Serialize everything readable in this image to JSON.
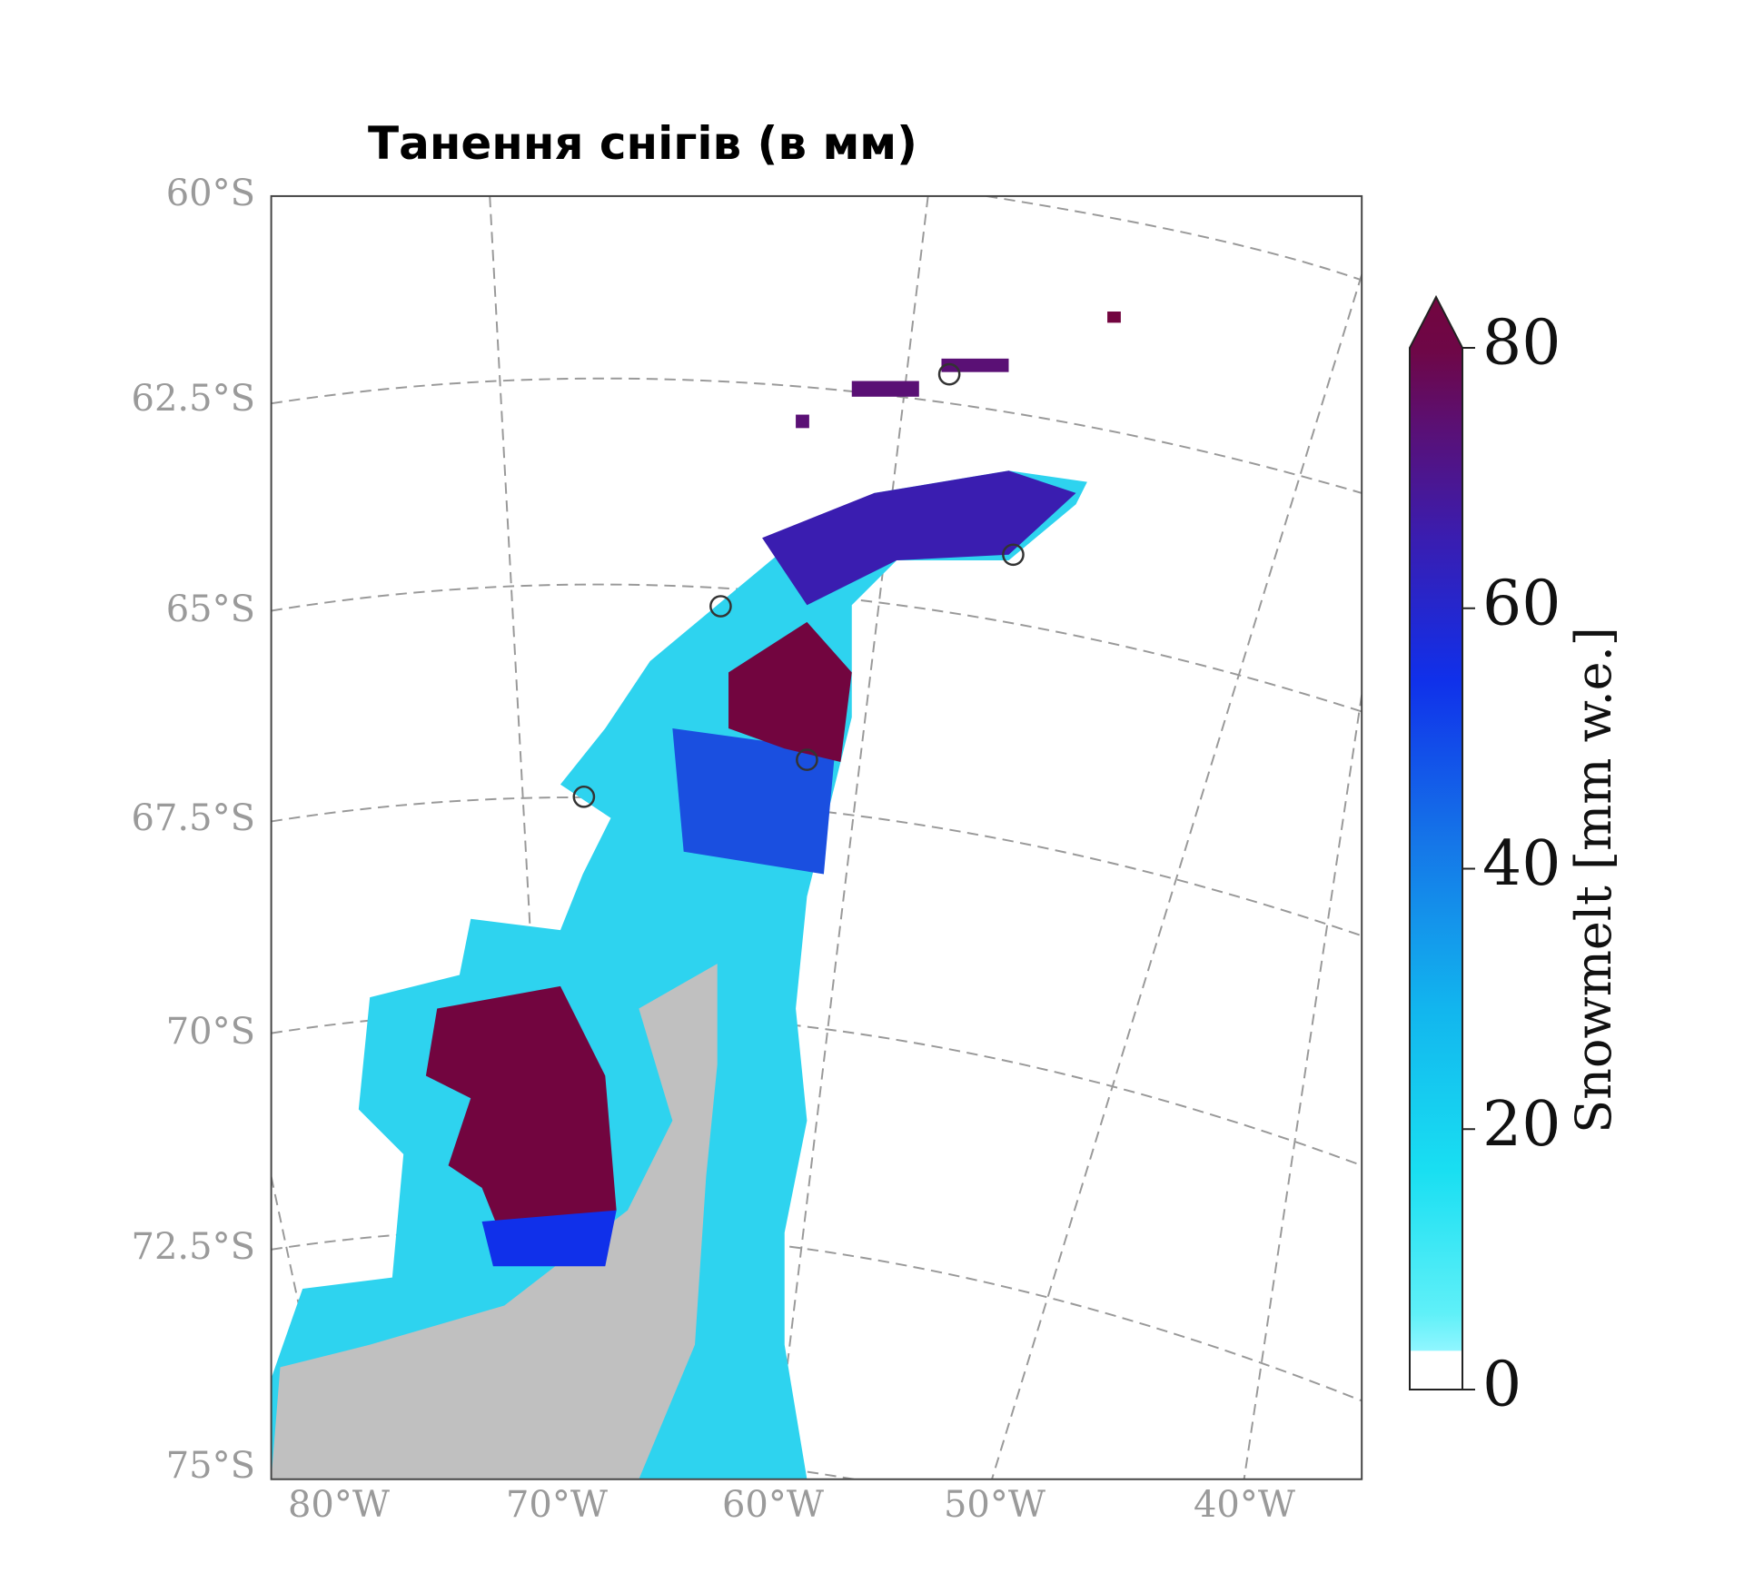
{
  "title": "Танення снігів (в мм)",
  "map": {
    "lat_labels": [
      "60°S",
      "62.5°S",
      "65°S",
      "67.5°S",
      "70°S",
      "72.5°S",
      "75°S"
    ],
    "lon_labels": [
      "80°W",
      "70°W",
      "60°W",
      "50°W",
      "40°W"
    ]
  },
  "colorbar": {
    "label": "Snowmelt [mm w.e.]",
    "lim": [
      0,
      80
    ],
    "ticks": [
      0,
      20,
      40,
      60,
      80
    ]
  }
}
